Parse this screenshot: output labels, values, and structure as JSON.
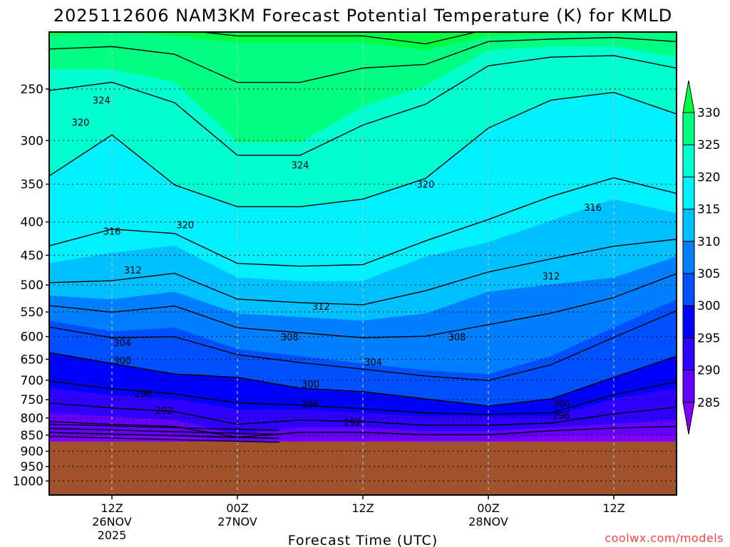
{
  "chart_data": {
    "type": "heatmap",
    "subtype": "time-height filled contour cross-section",
    "title": "2025112606 NAM3KM Forecast Potential Temperature (K) for KMLD",
    "xlabel": "Forecast Time (UTC)",
    "ylabel": "",
    "credit": "coolwx.com/models",
    "x_units": "forecast hour from 2025112606",
    "xlim": [
      0,
      60
    ],
    "ylim": [
      1050,
      204
    ],
    "y_scale": "log-pressure (hPa)",
    "y_ticks": [
      "250",
      "300",
      "350",
      "400",
      "450",
      "500",
      "550",
      "600",
      "650",
      "700",
      "750",
      "800",
      "850",
      "900",
      "950",
      "1000"
    ],
    "x_ticks": [
      {
        "hour": 6,
        "lines": [
          "12Z",
          "26NOV",
          "2025"
        ]
      },
      {
        "hour": 18,
        "lines": [
          "00Z",
          "27NOV"
        ]
      },
      {
        "hour": 30,
        "lines": [
          "12Z"
        ]
      },
      {
        "hour": 42,
        "lines": [
          "00Z",
          "28NOV"
        ]
      },
      {
        "hour": 54,
        "lines": [
          "12Z"
        ]
      }
    ],
    "grid": "dotted horizontal at pressure ticks, dashed vertical at time ticks",
    "hours": [
      0,
      6,
      12,
      18,
      24,
      30,
      36,
      42,
      48,
      54,
      60
    ],
    "isentrope_pressure_hPa": [
      {
        "theta": 285,
        "pressure": [
          848,
          853,
          853,
          870,
          865,
          865,
          865,
          865,
          853,
          848,
          853
        ]
      },
      {
        "theta": 290,
        "pressure": [
          786,
          796,
          806,
          848,
          827,
          827,
          838,
          838,
          827,
          817,
          806
        ]
      },
      {
        "theta": 295,
        "pressure": [
          720,
          738,
          748,
          776,
          776,
          786,
          796,
          796,
          796,
          748,
          720
        ]
      },
      {
        "theta": 300,
        "pressure": [
          635,
          660,
          685,
          693,
          720,
          729,
          748,
          767,
          748,
          693,
          643
        ]
      },
      {
        "theta": 305,
        "pressure": [
          567,
          589,
          581,
          627,
          643,
          660,
          676,
          685,
          643,
          581,
          526
        ]
      },
      {
        "theta": 310,
        "pressure": [
          519,
          526,
          512,
          553,
          560,
          567,
          553,
          512,
          499,
          487,
          452
        ]
      },
      {
        "theta": 315,
        "pressure": [
          463,
          446,
          435,
          487,
          493,
          493,
          452,
          430,
          398,
          369,
          388
        ]
      },
      {
        "theta": 320,
        "pressure": [
          340,
          294,
          351,
          379,
          379,
          369,
          343,
          287,
          260,
          253,
          273
        ]
      },
      {
        "theta": 325,
        "pressure": [
          233,
          233,
          244,
          302,
          302,
          266,
          247,
          218,
          215,
          215,
          223
        ]
      },
      {
        "theta": 330,
        "pressure": [
          207,
          204,
          207,
          212,
          212,
          212,
          218,
          207,
          206,
          204,
          204
        ]
      }
    ],
    "ground_pressure_hPa": 870,
    "ground_color": "#a0522d",
    "contour_interval_K": 4,
    "contour_labels": [
      {
        "value": "324",
        "hour": 5,
        "pressure": 260
      },
      {
        "value": "320",
        "hour": 3,
        "pressure": 281
      },
      {
        "value": "324",
        "hour": 24,
        "pressure": 327
      },
      {
        "value": "320",
        "hour": 36,
        "pressure": 350
      },
      {
        "value": "316",
        "hour": 52,
        "pressure": 380
      },
      {
        "value": "320",
        "hour": 13,
        "pressure": 404
      },
      {
        "value": "316",
        "hour": 6,
        "pressure": 413
      },
      {
        "value": "312",
        "hour": 8,
        "pressure": 474
      },
      {
        "value": "312",
        "hour": 26,
        "pressure": 539
      },
      {
        "value": "312",
        "hour": 48,
        "pressure": 484
      },
      {
        "value": "308",
        "hour": 23,
        "pressure": 601
      },
      {
        "value": "308",
        "hour": 39,
        "pressure": 601
      },
      {
        "value": "304",
        "hour": 7,
        "pressure": 613
      },
      {
        "value": "304",
        "hour": 31,
        "pressure": 656
      },
      {
        "value": "300",
        "hour": 7,
        "pressure": 653
      },
      {
        "value": "300",
        "hour": 25,
        "pressure": 709
      },
      {
        "value": "300",
        "hour": 49,
        "pressure": 759
      },
      {
        "value": "296",
        "hour": 9,
        "pressure": 734
      },
      {
        "value": "296",
        "hour": 25,
        "pressure": 761
      },
      {
        "value": "296",
        "hour": 49,
        "pressure": 792
      },
      {
        "value": "292",
        "hour": 11,
        "pressure": 779
      },
      {
        "value": "292",
        "hour": 29,
        "pressure": 813
      }
    ],
    "colorbar": {
      "levels": [
        "285",
        "290",
        "295",
        "300",
        "305",
        "310",
        "315",
        "320",
        "325",
        "330"
      ],
      "colors": [
        "#8000ff",
        "#6400ff",
        "#3000ff",
        "#0000ff",
        "#0050ff",
        "#0080ff",
        "#00c0ff",
        "#00f0ff",
        "#00ffd0",
        "#00ff80",
        "#00ff40"
      ]
    }
  }
}
